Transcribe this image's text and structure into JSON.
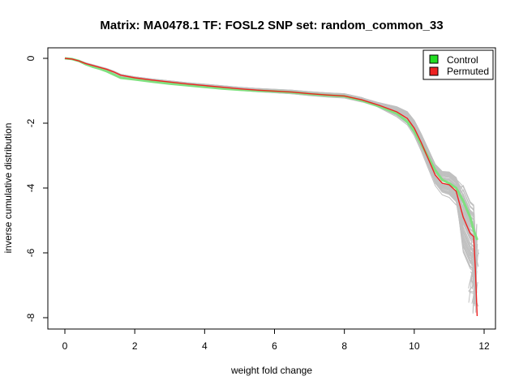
{
  "chart_data": {
    "type": "line",
    "title": "Matrix: MA0478.1 TF: FOSL2 SNP set: random_common_33",
    "xlabel": "weight fold change",
    "ylabel": "inverse cumulative distribution",
    "xlim": [
      0,
      12
    ],
    "ylim": [
      -8,
      0
    ],
    "x_ticks": [
      "0",
      "2",
      "4",
      "6",
      "8",
      "10",
      "12"
    ],
    "y_ticks": [
      "0",
      "-2",
      "-4",
      "-6",
      "-8"
    ],
    "legend": {
      "position": "top-right",
      "entries": [
        {
          "label": "Control",
          "color": "#22dd22"
        },
        {
          "label": "Permuted",
          "color": "#ee2222"
        }
      ]
    },
    "background_series": {
      "color": "#c0c0c0",
      "count": 60,
      "description": "permutation curves"
    },
    "series": [
      {
        "name": "Control",
        "color": "#7fe07f",
        "x": [
          0,
          0.2,
          0.4,
          0.6,
          0.8,
          1.0,
          1.2,
          1.4,
          1.6,
          2.0,
          2.5,
          3.0,
          3.5,
          4.0,
          4.5,
          5.0,
          5.5,
          6.0,
          6.5,
          7.0,
          7.5,
          8.0,
          8.5,
          9.0,
          9.5,
          9.8,
          10.0,
          10.2,
          10.4,
          10.6,
          10.8,
          11.0,
          11.2,
          11.4,
          11.6,
          11.7,
          11.8
        ],
        "y": [
          0,
          -0.02,
          -0.08,
          -0.18,
          -0.26,
          -0.32,
          -0.4,
          -0.5,
          -0.6,
          -0.65,
          -0.72,
          -0.78,
          -0.83,
          -0.88,
          -0.93,
          -0.97,
          -1.0,
          -1.02,
          -1.05,
          -1.1,
          -1.14,
          -1.17,
          -1.3,
          -1.48,
          -1.7,
          -1.95,
          -2.25,
          -2.65,
          -3.05,
          -3.45,
          -3.75,
          -3.85,
          -4.0,
          -4.4,
          -4.9,
          -5.3,
          -5.6
        ]
      },
      {
        "name": "Permuted",
        "color": "#ee2222",
        "x": [
          0,
          0.2,
          0.4,
          0.6,
          0.8,
          1.0,
          1.2,
          1.4,
          1.6,
          2.0,
          2.5,
          3.0,
          3.5,
          4.0,
          4.5,
          5.0,
          5.5,
          6.0,
          6.5,
          7.0,
          7.5,
          8.0,
          8.5,
          9.0,
          9.5,
          9.8,
          10.0,
          10.2,
          10.4,
          10.6,
          10.8,
          11.0,
          11.2,
          11.4,
          11.6,
          11.7,
          11.75,
          11.8
        ],
        "y": [
          0,
          -0.02,
          -0.08,
          -0.16,
          -0.22,
          -0.28,
          -0.34,
          -0.42,
          -0.52,
          -0.6,
          -0.67,
          -0.73,
          -0.79,
          -0.84,
          -0.89,
          -0.94,
          -0.98,
          -1.01,
          -1.04,
          -1.09,
          -1.13,
          -1.16,
          -1.28,
          -1.45,
          -1.65,
          -1.85,
          -2.15,
          -2.6,
          -3.1,
          -3.6,
          -3.85,
          -3.9,
          -4.1,
          -4.9,
          -5.4,
          -5.5,
          -6.5,
          -7.95
        ]
      }
    ]
  }
}
